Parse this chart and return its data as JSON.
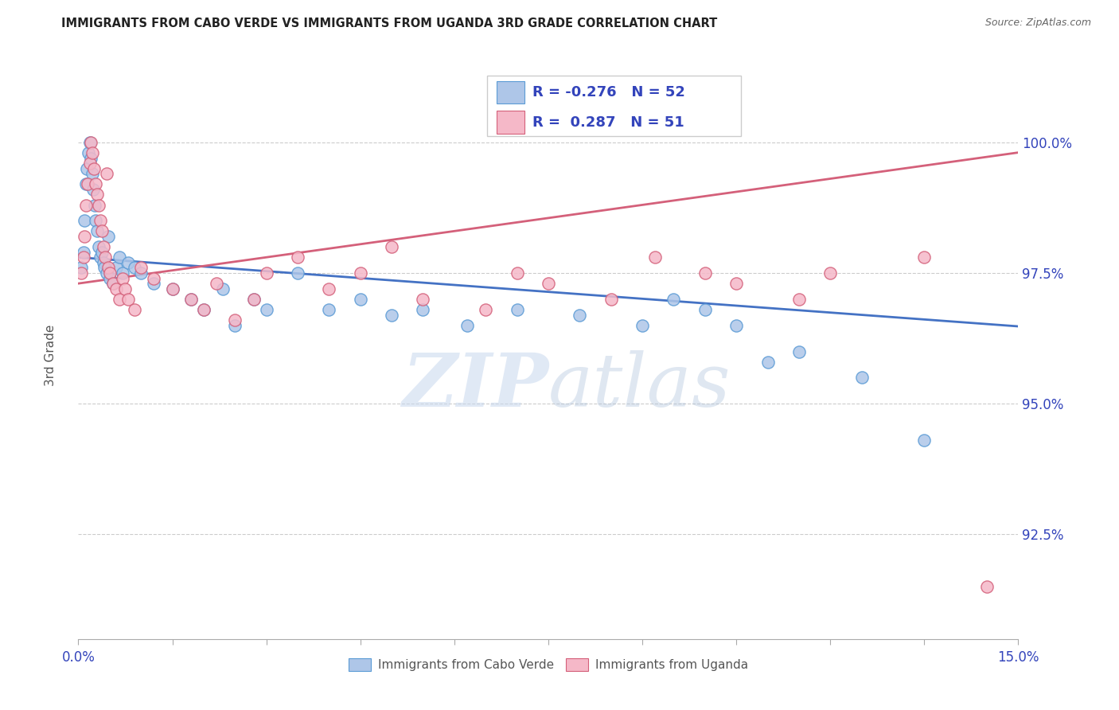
{
  "title": "IMMIGRANTS FROM CABO VERDE VS IMMIGRANTS FROM UGANDA 3RD GRADE CORRELATION CHART",
  "source": "Source: ZipAtlas.com",
  "ylabel": "3rd Grade",
  "x_min": 0.0,
  "x_max": 15.0,
  "y_min": 90.5,
  "y_max": 101.5,
  "y_ticks": [
    92.5,
    95.0,
    97.5,
    100.0
  ],
  "y_tick_labels": [
    "92.5%",
    "95.0%",
    "97.5%",
    "100.0%"
  ],
  "cabo_verde_color": "#aec6e8",
  "cabo_verde_edge": "#5b9bd5",
  "uganda_color": "#f5b8c8",
  "uganda_edge": "#d4607a",
  "cabo_line_color": "#4472c4",
  "uganda_line_color": "#d4607a",
  "r_cabo": -0.276,
  "n_cabo": 52,
  "r_uganda": 0.287,
  "n_uganda": 51,
  "cabo_verde_x": [
    0.05,
    0.08,
    0.1,
    0.12,
    0.14,
    0.16,
    0.18,
    0.2,
    0.22,
    0.24,
    0.26,
    0.28,
    0.3,
    0.32,
    0.35,
    0.38,
    0.4,
    0.42,
    0.45,
    0.48,
    0.5,
    0.55,
    0.6,
    0.65,
    0.7,
    0.8,
    0.9,
    1.0,
    1.2,
    1.5,
    1.8,
    2.0,
    2.3,
    2.5,
    2.8,
    3.0,
    3.5,
    4.0,
    4.5,
    5.0,
    5.5,
    6.2,
    7.0,
    8.0,
    9.0,
    9.5,
    10.0,
    10.5,
    11.0,
    11.5,
    12.5,
    13.5
  ],
  "cabo_verde_y": [
    97.6,
    97.9,
    98.5,
    99.2,
    99.5,
    99.8,
    100.0,
    99.7,
    99.4,
    99.1,
    98.8,
    98.5,
    98.3,
    98.0,
    97.8,
    97.9,
    97.7,
    97.6,
    97.5,
    98.2,
    97.4,
    97.3,
    97.6,
    97.8,
    97.5,
    97.7,
    97.6,
    97.5,
    97.3,
    97.2,
    97.0,
    96.8,
    97.2,
    96.5,
    97.0,
    96.8,
    97.5,
    96.8,
    97.0,
    96.7,
    96.8,
    96.5,
    96.8,
    96.7,
    96.5,
    97.0,
    96.8,
    96.5,
    95.8,
    96.0,
    95.5,
    94.3
  ],
  "uganda_x": [
    0.05,
    0.08,
    0.1,
    0.12,
    0.15,
    0.18,
    0.2,
    0.22,
    0.25,
    0.28,
    0.3,
    0.32,
    0.35,
    0.38,
    0.4,
    0.43,
    0.45,
    0.48,
    0.5,
    0.55,
    0.6,
    0.65,
    0.7,
    0.75,
    0.8,
    0.9,
    1.0,
    1.2,
    1.5,
    1.8,
    2.0,
    2.2,
    2.5,
    2.8,
    3.0,
    3.5,
    4.0,
    4.5,
    5.0,
    5.5,
    6.5,
    7.0,
    7.5,
    8.5,
    9.2,
    10.0,
    10.5,
    11.5,
    12.0,
    13.5,
    14.5
  ],
  "uganda_y": [
    97.5,
    97.8,
    98.2,
    98.8,
    99.2,
    99.6,
    100.0,
    99.8,
    99.5,
    99.2,
    99.0,
    98.8,
    98.5,
    98.3,
    98.0,
    97.8,
    99.4,
    97.6,
    97.5,
    97.3,
    97.2,
    97.0,
    97.4,
    97.2,
    97.0,
    96.8,
    97.6,
    97.4,
    97.2,
    97.0,
    96.8,
    97.3,
    96.6,
    97.0,
    97.5,
    97.8,
    97.2,
    97.5,
    98.0,
    97.0,
    96.8,
    97.5,
    97.3,
    97.0,
    97.8,
    97.5,
    97.3,
    97.0,
    97.5,
    97.8,
    91.5
  ]
}
